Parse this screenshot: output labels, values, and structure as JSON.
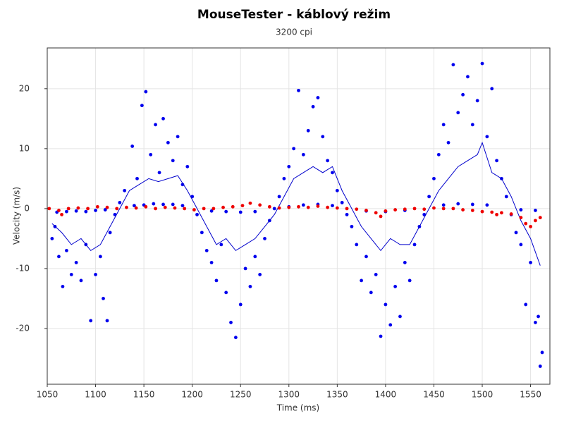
{
  "chart_data": {
    "type": "scatter",
    "title": "MouseTester - káblový režim",
    "subtitle": "3200 cpi",
    "x_label": "Time (ms)",
    "y_label": "Velocity (m/s)",
    "xlim": [
      1050,
      1570
    ],
    "ylim": [
      -29.3,
      26.8
    ],
    "xticks": [
      1050,
      1100,
      1150,
      1200,
      1250,
      1300,
      1350,
      1400,
      1450,
      1500,
      1550
    ],
    "yticks": [
      -20,
      -10,
      0,
      10,
      20
    ],
    "grid": true,
    "series": [
      {
        "color": "#0000ee",
        "style": "markers",
        "x": [
          1055,
          1058,
          1062,
          1066,
          1070,
          1075,
          1080,
          1085,
          1090,
          1095,
          1100,
          1105,
          1108,
          1112,
          1115,
          1120,
          1125,
          1130,
          1138,
          1143,
          1148,
          1152,
          1157,
          1162,
          1166,
          1170,
          1175,
          1180,
          1185,
          1190,
          1195,
          1200,
          1205,
          1210,
          1215,
          1220,
          1225,
          1230,
          1235,
          1240,
          1245,
          1250,
          1255,
          1260,
          1265,
          1270,
          1275,
          1280,
          1285,
          1290,
          1295,
          1300,
          1305,
          1310,
          1315,
          1320,
          1325,
          1330,
          1335,
          1340,
          1345,
          1350,
          1355,
          1360,
          1365,
          1370,
          1375,
          1380,
          1385,
          1390,
          1395,
          1400,
          1405,
          1410,
          1415,
          1420,
          1425,
          1430,
          1435,
          1440,
          1445,
          1450,
          1455,
          1460,
          1465,
          1470,
          1475,
          1480,
          1485,
          1490,
          1495,
          1500,
          1505,
          1510,
          1515,
          1520,
          1525,
          1530,
          1535,
          1540,
          1545,
          1550,
          1555,
          1558,
          1560,
          1562
        ],
        "values": [
          -5,
          -3,
          -8,
          -13,
          -7,
          -11,
          -9,
          -12,
          -6,
          -18.7,
          -11,
          -8,
          -15,
          -18.7,
          -4,
          -1,
          1,
          3,
          10.4,
          5,
          17.2,
          19.5,
          9,
          14,
          6,
          15,
          11,
          8,
          12,
          4,
          7,
          2,
          -1,
          -4,
          -7,
          -9,
          -12,
          -6,
          -14,
          -19,
          -21.5,
          -16,
          -10,
          -13,
          -8,
          -11,
          -5,
          -2,
          0,
          2,
          5,
          7,
          10,
          19.7,
          9,
          13,
          17,
          18.5,
          12,
          8,
          6,
          3,
          1,
          -1,
          -3,
          -6,
          -12,
          -8,
          -14,
          -11,
          -21.3,
          -16,
          -19.4,
          -13,
          -18,
          -9,
          -12,
          -6,
          -3,
          -1,
          2,
          5,
          9,
          14,
          11,
          24,
          16,
          19,
          22,
          14,
          18,
          24.2,
          12,
          20,
          8,
          5,
          2,
          -1,
          -4,
          -6,
          -16,
          -9,
          -19,
          -18,
          -26.3,
          -24
        ]
      },
      {
        "color": "#0000ee",
        "style": "markers",
        "x": [
          1060,
          1070,
          1080,
          1090,
          1100,
          1110,
          1140,
          1150,
          1160,
          1170,
          1180,
          1190,
          1220,
          1235,
          1250,
          1265,
          1300,
          1315,
          1330,
          1345,
          1380,
          1400,
          1420,
          1460,
          1475,
          1490,
          1505,
          1540,
          1555
        ],
        "values": [
          -0.6,
          -0.5,
          -0.4,
          -0.5,
          -0.3,
          -0.2,
          0.5,
          0.6,
          0.8,
          0.7,
          0.7,
          0.5,
          -0.4,
          -0.5,
          -0.6,
          -0.5,
          0.3,
          0.6,
          0.7,
          0.5,
          -0.4,
          -0.5,
          -0.3,
          0.6,
          0.8,
          0.7,
          0.6,
          -0.2,
          -0.3
        ]
      },
      {
        "color": "#0000cc",
        "style": "line",
        "x": [
          1055,
          1065,
          1075,
          1085,
          1095,
          1105,
          1115,
          1125,
          1135,
          1145,
          1155,
          1165,
          1175,
          1185,
          1195,
          1205,
          1215,
          1225,
          1235,
          1245,
          1255,
          1265,
          1275,
          1285,
          1295,
          1305,
          1315,
          1325,
          1335,
          1345,
          1355,
          1365,
          1375,
          1385,
          1395,
          1405,
          1415,
          1425,
          1435,
          1445,
          1455,
          1465,
          1475,
          1485,
          1495,
          1500,
          1510,
          1520,
          1530,
          1540,
          1550,
          1560
        ],
        "values": [
          -2.5,
          -4,
          -6,
          -5,
          -7,
          -6,
          -3,
          0,
          3,
          4,
          5,
          4.5,
          5,
          5.5,
          3,
          0,
          -3,
          -6,
          -5,
          -7,
          -6,
          -5,
          -3,
          -1,
          2,
          5,
          6,
          7,
          6,
          7,
          3,
          0,
          -3,
          -5,
          -7,
          -5,
          -6,
          -6,
          -3,
          0,
          3,
          5,
          7,
          8,
          9,
          11,
          6,
          5,
          2,
          -2,
          -5,
          -9.5
        ]
      },
      {
        "color": "#ee0000",
        "style": "markers",
        "x": [
          1052,
          1062,
          1065,
          1072,
          1082,
          1092,
          1102,
          1112,
          1122,
          1132,
          1142,
          1152,
          1162,
          1172,
          1182,
          1192,
          1202,
          1212,
          1222,
          1232,
          1242,
          1252,
          1260,
          1270,
          1280,
          1290,
          1300,
          1310,
          1320,
          1330,
          1340,
          1350,
          1360,
          1370,
          1380,
          1390,
          1395,
          1400,
          1410,
          1420,
          1430,
          1440,
          1450,
          1460,
          1470,
          1480,
          1490,
          1500,
          1510,
          1515,
          1520,
          1530,
          1540,
          1545,
          1550,
          1555,
          1560
        ],
        "values": [
          0,
          -0.3,
          -1,
          0,
          0.1,
          0,
          0.3,
          0.2,
          0,
          0.2,
          0.1,
          0.3,
          0,
          0.2,
          0.1,
          0,
          -0.2,
          0,
          0,
          0.2,
          0.3,
          0.5,
          0.9,
          0.6,
          0.3,
          0.1,
          0.2,
          0.3,
          0.2,
          0.4,
          0.2,
          0.1,
          0,
          -0.1,
          -0.3,
          -0.7,
          -1.3,
          -0.4,
          -0.2,
          -0.1,
          0,
          -0.1,
          0.1,
          0,
          0,
          -0.2,
          -0.3,
          -0.5,
          -0.6,
          -1,
          -0.7,
          -0.9,
          -1.5,
          -2.5,
          -3,
          -2,
          -1.5
        ]
      }
    ]
  }
}
